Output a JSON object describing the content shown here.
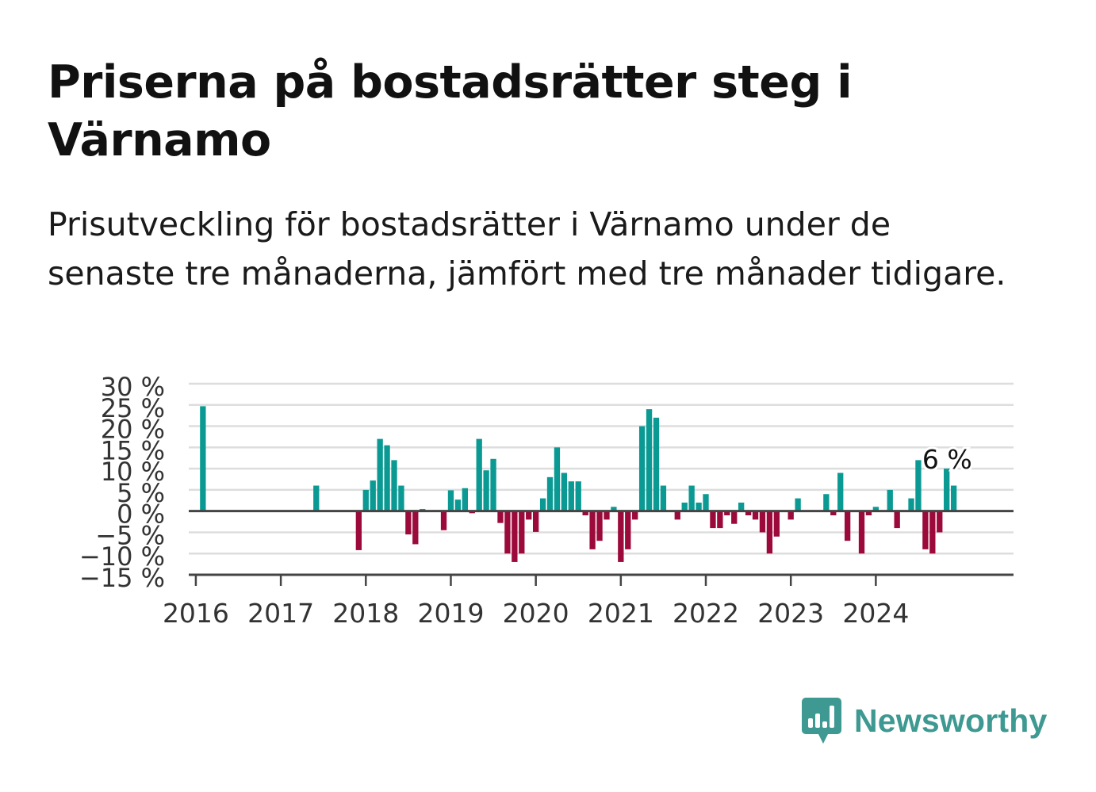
{
  "title": "Priserna på bostadsrätter steg i Värnamo",
  "subtitle": "Prisutveckling för bostadsrätter i Värnamo under de senaste tre månaderna, jämfört med tre månader tidigare.",
  "logo": {
    "text": "Newsworthy",
    "color": "#3d9991",
    "icon": "bar-chart-speech-icon"
  },
  "colors": {
    "positive": "#0b9a93",
    "negative": "#9b0a3b",
    "grid": "#dddddd",
    "axis": "#444444"
  },
  "chart_data": {
    "type": "bar",
    "title": "Priserna på bostadsrätter steg i Värnamo",
    "xlabel": "",
    "ylabel": "",
    "ylim": [
      -15,
      30
    ],
    "y_ticks": [
      30,
      25,
      20,
      15,
      10,
      5,
      0,
      -5,
      -10,
      -15
    ],
    "y_tick_labels": [
      "30 %",
      "25 %",
      "20 %",
      "15 %",
      "10 %",
      "5 %",
      "0 %",
      "−5 %",
      "−10 %",
      "−15 %"
    ],
    "x_tick_labels": [
      "2016",
      "2017",
      "2018",
      "2019",
      "2020",
      "2021",
      "2022",
      "2023",
      "2024"
    ],
    "x_tick_years": [
      2016,
      2017,
      2018,
      2019,
      2020,
      2021,
      2022,
      2023,
      2024
    ],
    "grid": true,
    "annotation": {
      "date": "2024-11",
      "text": "6 %"
    },
    "series": [
      {
        "values": [
          {
            "date": "2016-02",
            "value": 24.7
          },
          {
            "date": "2017-06",
            "value": 6.0
          },
          {
            "date": "2017-12",
            "value": -9.2
          },
          {
            "date": "2018-01",
            "value": 5.0
          },
          {
            "date": "2018-02",
            "value": 7.2
          },
          {
            "date": "2018-03",
            "value": 17.0
          },
          {
            "date": "2018-04",
            "value": 15.5
          },
          {
            "date": "2018-05",
            "value": 12.0
          },
          {
            "date": "2018-06",
            "value": 6.0
          },
          {
            "date": "2018-07",
            "value": -5.5
          },
          {
            "date": "2018-08",
            "value": -7.8
          },
          {
            "date": "2018-09",
            "value": 0.5
          },
          {
            "date": "2018-12",
            "value": -4.5
          },
          {
            "date": "2019-01",
            "value": 4.9
          },
          {
            "date": "2019-02",
            "value": 2.7
          },
          {
            "date": "2019-03",
            "value": 5.4
          },
          {
            "date": "2019-04",
            "value": -0.5
          },
          {
            "date": "2019-05",
            "value": 17.0
          },
          {
            "date": "2019-06",
            "value": 9.6
          },
          {
            "date": "2019-07",
            "value": 12.3
          },
          {
            "date": "2019-08",
            "value": -2.8
          },
          {
            "date": "2019-09",
            "value": -10.0
          },
          {
            "date": "2019-10",
            "value": -12.0
          },
          {
            "date": "2019-11",
            "value": -10.0
          },
          {
            "date": "2019-12",
            "value": -2.0
          },
          {
            "date": "2020-01",
            "value": -4.9
          },
          {
            "date": "2020-02",
            "value": 3.0
          },
          {
            "date": "2020-03",
            "value": 8.0
          },
          {
            "date": "2020-04",
            "value": 15.0
          },
          {
            "date": "2020-05",
            "value": 9.0
          },
          {
            "date": "2020-06",
            "value": 7.0
          },
          {
            "date": "2020-07",
            "value": 7.0
          },
          {
            "date": "2020-08",
            "value": -1.0
          },
          {
            "date": "2020-09",
            "value": -9.0
          },
          {
            "date": "2020-10",
            "value": -7.0
          },
          {
            "date": "2020-11",
            "value": -2.0
          },
          {
            "date": "2020-12",
            "value": 1.0
          },
          {
            "date": "2021-01",
            "value": -12.0
          },
          {
            "date": "2021-02",
            "value": -9.0
          },
          {
            "date": "2021-03",
            "value": -2.0
          },
          {
            "date": "2021-04",
            "value": 20.0
          },
          {
            "date": "2021-05",
            "value": 24.0
          },
          {
            "date": "2021-06",
            "value": 22.0
          },
          {
            "date": "2021-07",
            "value": 6.0
          },
          {
            "date": "2021-09",
            "value": -2.0
          },
          {
            "date": "2021-10",
            "value": 2.0
          },
          {
            "date": "2021-11",
            "value": 6.0
          },
          {
            "date": "2021-12",
            "value": 2.0
          },
          {
            "date": "2022-01",
            "value": 4.0
          },
          {
            "date": "2022-02",
            "value": -4.0
          },
          {
            "date": "2022-03",
            "value": -4.0
          },
          {
            "date": "2022-04",
            "value": -1.0
          },
          {
            "date": "2022-05",
            "value": -3.0
          },
          {
            "date": "2022-06",
            "value": 2.0
          },
          {
            "date": "2022-07",
            "value": -1.0
          },
          {
            "date": "2022-08",
            "value": -2.0
          },
          {
            "date": "2022-09",
            "value": -5.0
          },
          {
            "date": "2022-10",
            "value": -10.0
          },
          {
            "date": "2022-11",
            "value": -6.0
          },
          {
            "date": "2023-01",
            "value": -2.0
          },
          {
            "date": "2023-02",
            "value": 3.0
          },
          {
            "date": "2023-06",
            "value": 4.0
          },
          {
            "date": "2023-07",
            "value": -1.0
          },
          {
            "date": "2023-08",
            "value": 9.0
          },
          {
            "date": "2023-09",
            "value": -7.0
          },
          {
            "date": "2023-11",
            "value": -10.0
          },
          {
            "date": "2023-12",
            "value": -1.0
          },
          {
            "date": "2024-01",
            "value": 1.0
          },
          {
            "date": "2024-03",
            "value": 5.0
          },
          {
            "date": "2024-04",
            "value": -4.0
          },
          {
            "date": "2024-06",
            "value": 3.0
          },
          {
            "date": "2024-07",
            "value": 12.0
          },
          {
            "date": "2024-08",
            "value": -9.0
          },
          {
            "date": "2024-09",
            "value": -10.0
          },
          {
            "date": "2024-10",
            "value": -5.0
          },
          {
            "date": "2024-11",
            "value": 10.0
          },
          {
            "date": "2024-12",
            "value": 6.0
          }
        ]
      }
    ]
  }
}
